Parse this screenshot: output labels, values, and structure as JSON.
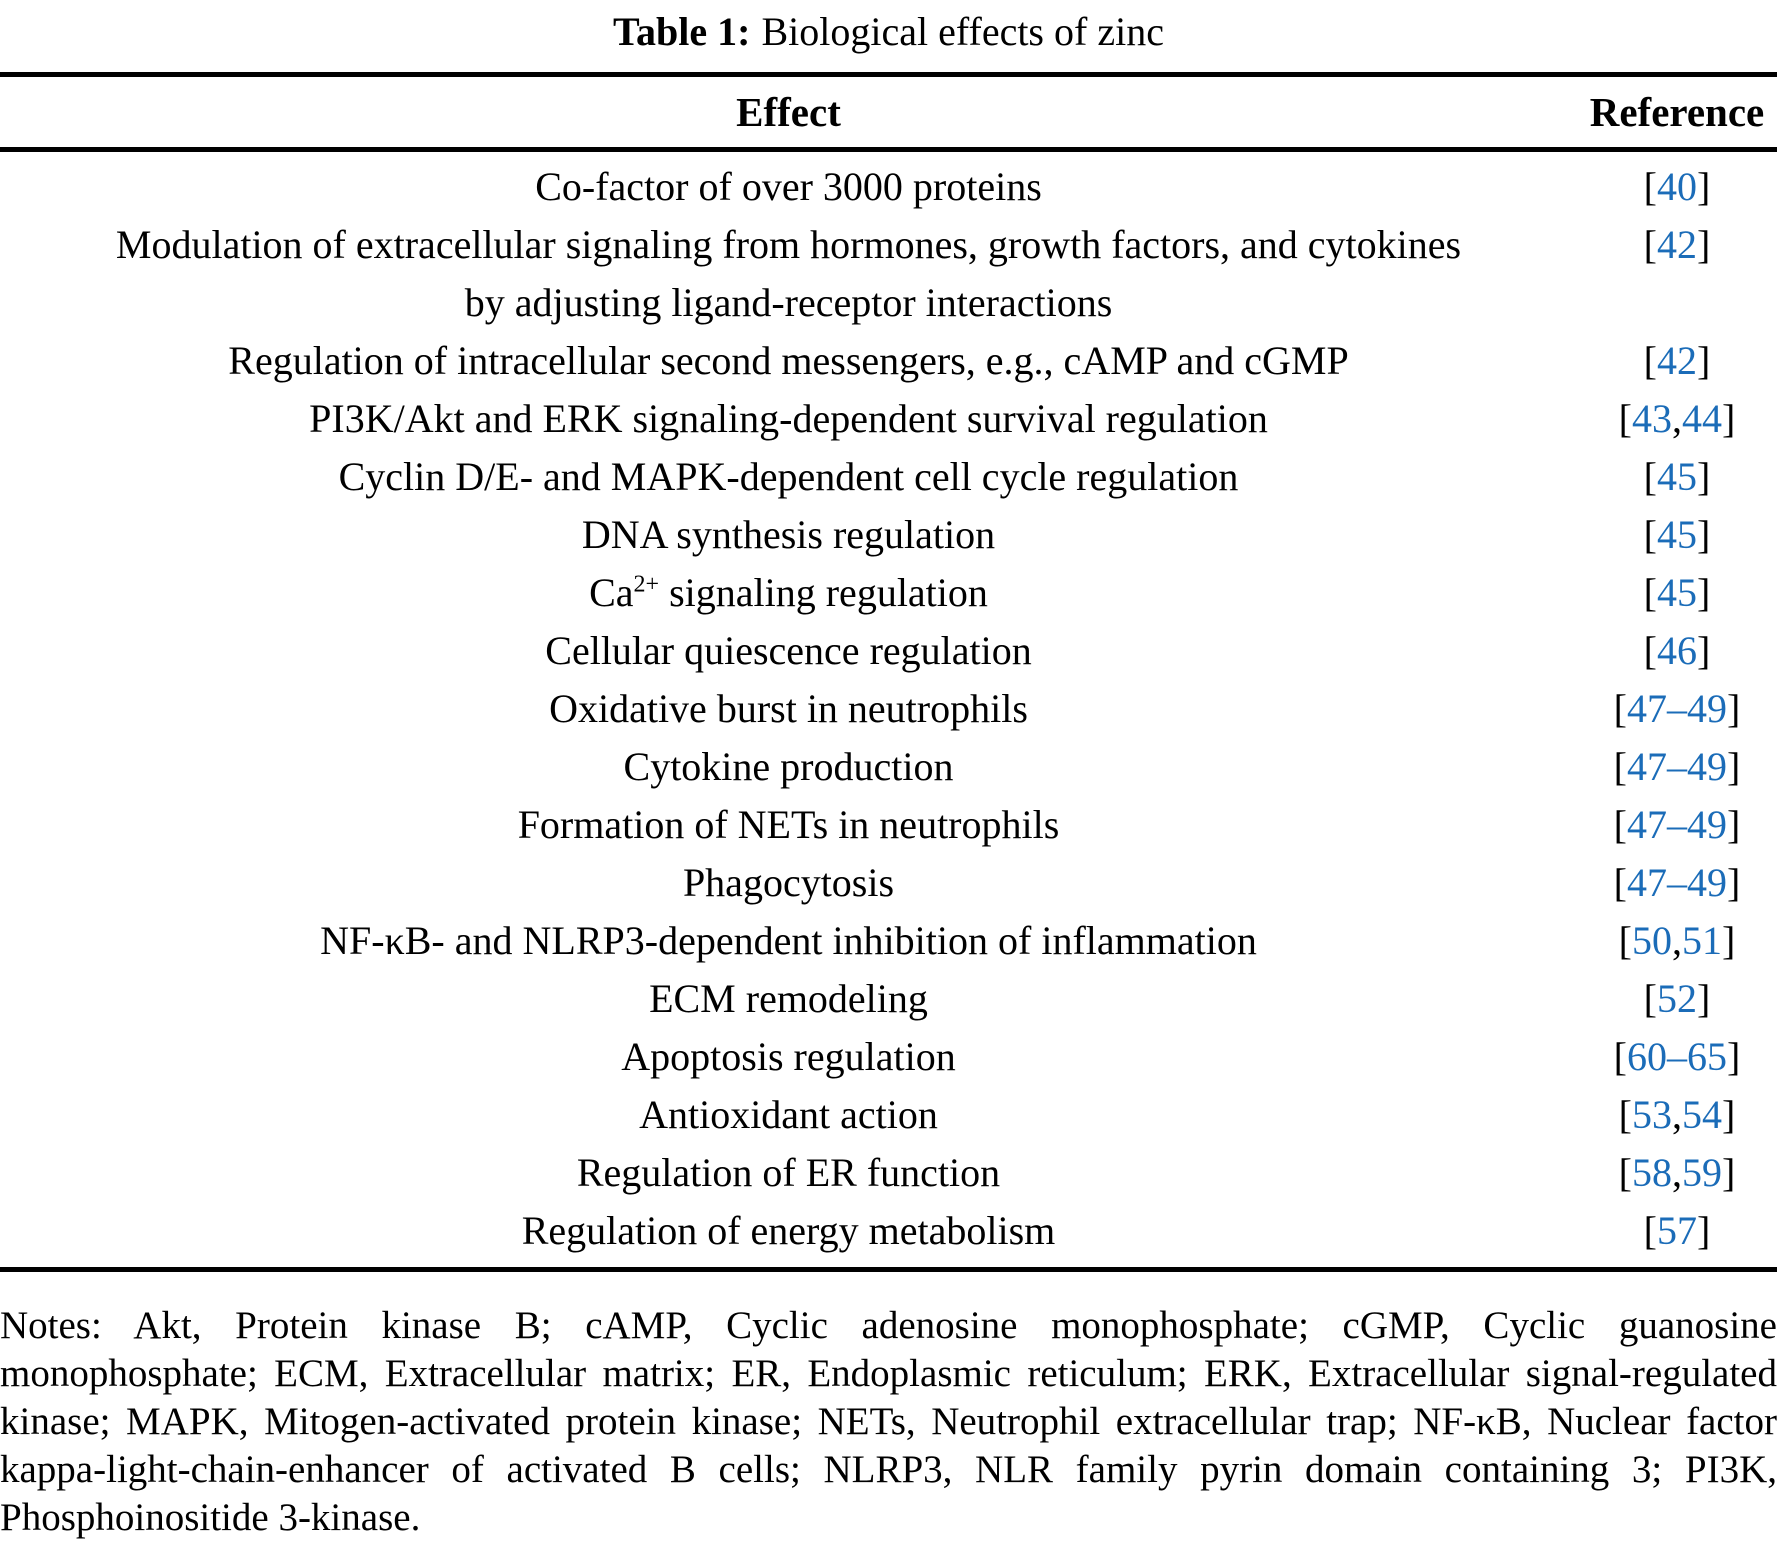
{
  "title": {
    "label": "Table 1:",
    "text": "Biological effects of zinc"
  },
  "table": {
    "headers": {
      "effect": "Effect",
      "reference": "Reference"
    },
    "rows": [
      {
        "effect_lines": [
          "Co-factor of over 3000 proteins"
        ],
        "reference": "[40]"
      },
      {
        "effect_lines": [
          "Modulation of extracellular signaling from hormones, growth factors, and cytokines",
          "by adjusting ligand-receptor interactions"
        ],
        "reference": "[42]"
      },
      {
        "effect_lines": [
          "Regulation of intracellular second messengers, e.g., cAMP and cGMP"
        ],
        "reference": "[42]"
      },
      {
        "effect_lines": [
          "PI3K/Akt and ERK signaling-dependent survival regulation"
        ],
        "reference": "[43,44]"
      },
      {
        "effect_lines": [
          "Cyclin D/E- and MAPK-dependent cell cycle regulation"
        ],
        "reference": "[45]"
      },
      {
        "effect_lines": [
          "DNA synthesis regulation"
        ],
        "reference": "[45]"
      },
      {
        "effect_lines": [
          "Ca^{2+} signaling regulation"
        ],
        "reference": "[45]"
      },
      {
        "effect_lines": [
          "Cellular quiescence regulation"
        ],
        "reference": "[46]"
      },
      {
        "effect_lines": [
          "Oxidative burst in neutrophils"
        ],
        "reference": "[47–49]"
      },
      {
        "effect_lines": [
          "Cytokine production"
        ],
        "reference": "[47–49]"
      },
      {
        "effect_lines": [
          "Formation of NETs in neutrophils"
        ],
        "reference": "[47–49]"
      },
      {
        "effect_lines": [
          "Phagocytosis"
        ],
        "reference": "[47–49]"
      },
      {
        "effect_lines": [
          "NF-κB- and NLRP3-dependent inhibition of inflammation"
        ],
        "reference": "[50,51]"
      },
      {
        "effect_lines": [
          "ECM remodeling"
        ],
        "reference": "[52]"
      },
      {
        "effect_lines": [
          "Apoptosis regulation"
        ],
        "reference": "[60–65]"
      },
      {
        "effect_lines": [
          "Antioxidant action"
        ],
        "reference": "[53,54]"
      },
      {
        "effect_lines": [
          "Regulation of ER function"
        ],
        "reference": "[58,59]"
      },
      {
        "effect_lines": [
          "Regulation of energy metabolism"
        ],
        "reference": "[57]"
      }
    ]
  },
  "notes": {
    "text": "Notes: Akt, Protein kinase B; cAMP, Cyclic adenosine monophosphate; cGMP, Cyclic guanosine monophosphate; ECM, Extracellular matrix; ER, Endoplasmic reticulum; ERK, Extracellular signal-regulated kinase; MAPK, Mitogen-activated protein kinase; NETs, Neutrophil extracellular trap; NF-κB, Nuclear factor kappa-light-chain-enhancer of activated B cells; NLRP3, NLR family pyrin domain containing 3; PI3K, Phosphoinositide 3-kinase."
  },
  "colors": {
    "reference_link": "#1b6cb8",
    "text": "#000000"
  }
}
